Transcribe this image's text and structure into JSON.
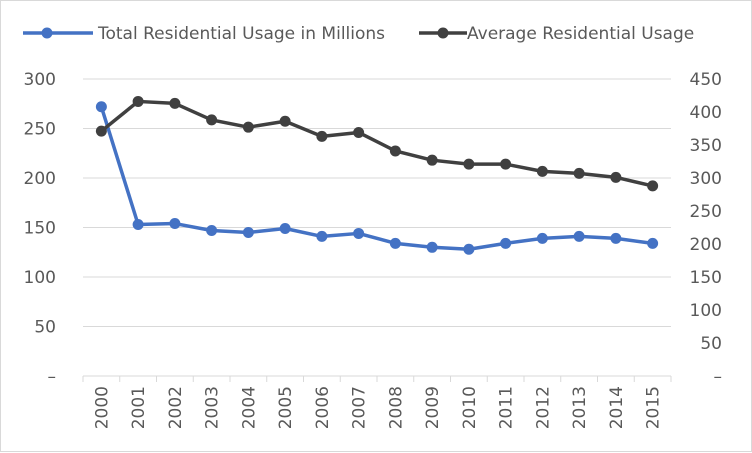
{
  "chart_data": {
    "type": "line",
    "title": "",
    "xlabel": "",
    "ylabel": "",
    "categories": [
      "2000",
      "2001",
      "2002",
      "2003",
      "2004",
      "2005",
      "2006",
      "2007",
      "2008",
      "2009",
      "2010",
      "2011",
      "2012",
      "2013",
      "2014",
      "2015"
    ],
    "series": [
      {
        "name": "Total Residential Usage in Millions",
        "axis": "left",
        "color": "#4472c4",
        "values": [
          272,
          153,
          154,
          147,
          145,
          149,
          141,
          144,
          134,
          130,
          128,
          134,
          139,
          141,
          139,
          134
        ]
      },
      {
        "name": "Average Residential Usage",
        "axis": "right",
        "color": "#404040",
        "values": [
          371,
          416,
          413,
          388,
          377,
          386,
          363,
          369,
          341,
          327,
          321,
          321,
          310,
          307,
          301,
          288
        ]
      }
    ],
    "y_left": {
      "min": 0,
      "max": 300,
      "step": 50,
      "ticks": [
        "–",
        "50",
        "100",
        "150",
        "200",
        "250",
        "300"
      ]
    },
    "y_right": {
      "min": 0,
      "max": 450,
      "step": 50,
      "ticks": [
        "–",
        "50",
        "100",
        "150",
        "200",
        "250",
        "300",
        "350",
        "400",
        "450"
      ]
    },
    "grid": true,
    "legend_position": "top"
  }
}
